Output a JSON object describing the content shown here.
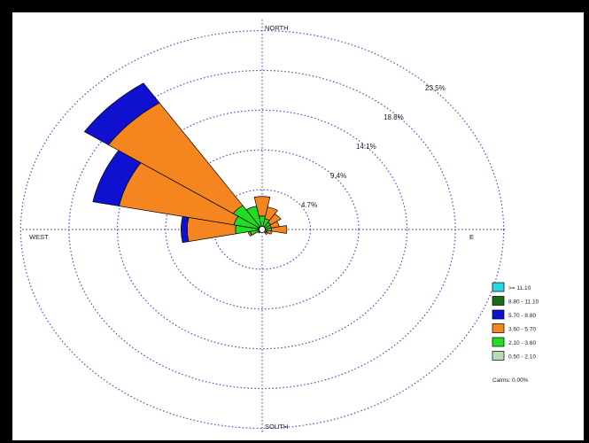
{
  "chart_data": {
    "type": "wind-rose",
    "direction_labels": {
      "north": "NORTH",
      "south": "SOUTH",
      "west": "WEST",
      "east": "E"
    },
    "rings": [
      "4.7%",
      "9.4%",
      "14.1%",
      "18.8%",
      "23.5%"
    ],
    "ring_values": [
      4.7,
      9.4,
      14.1,
      18.8,
      23.5
    ],
    "directions_deg": [
      0,
      22.5,
      45,
      67.5,
      90,
      112.5,
      135,
      157.5,
      180,
      202.5,
      225,
      247.5,
      270,
      292.5,
      315,
      337.5
    ],
    "speed_bins": [
      {
        "label": ">= 11.10",
        "color": "#29d8e6"
      },
      {
        "label": "8.80 - 11.10",
        "color": "#1a6b1a"
      },
      {
        "label": "5.70 - 8.80",
        "color": "#1010d0"
      },
      {
        "label": "3.60 - 5.70",
        "color": "#f5861f"
      },
      {
        "label": "2.10 - 3.60",
        "color": "#22dd22"
      },
      {
        "label": "0.50 - 2.10",
        "color": "#b8dcb8"
      }
    ],
    "cumulative_percent_by_direction": [
      [
        0.3,
        1.6,
        3.9,
        3.9,
        3.9,
        3.9
      ],
      [
        0.3,
        1.3,
        2.7,
        2.7,
        2.7,
        2.7
      ],
      [
        0.3,
        1.0,
        2.2,
        2.2,
        2.2,
        2.2
      ],
      [
        0.3,
        0.9,
        1.7,
        1.7,
        1.7,
        1.7
      ],
      [
        0.3,
        0.9,
        2.4,
        2.4,
        2.4,
        2.4
      ],
      [
        0.3,
        0.5,
        1.0,
        1.0,
        1.0,
        1.0
      ],
      [
        0.2,
        0.5,
        0.7,
        0.7,
        0.7,
        0.7
      ],
      [
        0.2,
        0.3,
        0.3,
        0.3,
        0.3,
        0.3
      ],
      [
        0.2,
        0.2,
        0.2,
        0.2,
        0.2,
        0.2
      ],
      [
        0.2,
        0.3,
        0.3,
        0.3,
        0.3,
        0.3
      ],
      [
        0.3,
        0.4,
        0.5,
        0.5,
        0.5,
        0.5
      ],
      [
        0.3,
        1.2,
        1.4,
        1.4,
        1.4,
        1.4
      ],
      [
        0.4,
        2.6,
        7.3,
        7.9,
        7.9,
        7.9
      ],
      [
        0.4,
        2.8,
        14.2,
        16.8,
        16.8,
        16.8
      ],
      [
        0.4,
        3.4,
        18.0,
        20.8,
        20.8,
        20.8
      ],
      [
        0.3,
        2.8,
        2.8,
        2.8,
        2.8,
        2.8
      ]
    ],
    "calms": "Calms: 0.00%"
  }
}
